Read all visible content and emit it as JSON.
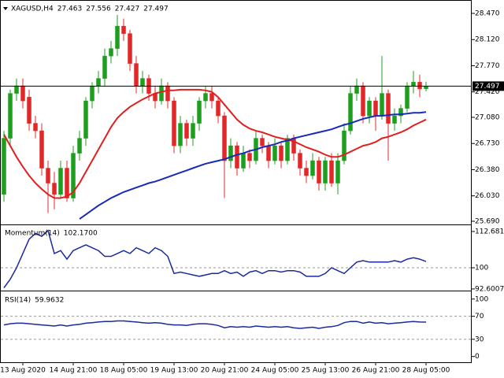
{
  "chart_data": [
    {
      "type": "candlestick",
      "title": "XAGUSD,H4",
      "categories": [
        null,
        null,
        null,
        "13 Aug 2020",
        null,
        null,
        null,
        null,
        null,
        null,
        null,
        "14 Aug 21:00",
        null,
        null,
        null,
        null,
        null,
        null,
        null,
        "18 Aug 05:00",
        null,
        null,
        null,
        null,
        null,
        null,
        null,
        "19 Aug 13:00",
        null,
        null,
        null,
        null,
        null,
        null,
        null,
        "20 Aug 21:00",
        null,
        null,
        null,
        null,
        null,
        null,
        null,
        "24 Aug 05:00",
        null,
        null,
        null,
        null,
        null,
        null,
        null,
        "25 Aug 13:00",
        null,
        null,
        null,
        null,
        null,
        null,
        null,
        "26 Aug 21:00",
        null,
        null,
        null,
        null,
        null,
        null,
        null,
        "28 Aug 05:00"
      ],
      "open": [
        26.05,
        26.8,
        27.4,
        27.5,
        27.35,
        27.0,
        26.9,
        26.4,
        26.2,
        26.05,
        26.4,
        26.0,
        26.6,
        26.8,
        27.3,
        27.5,
        27.6,
        27.9,
        28.0,
        28.3,
        28.2,
        27.8,
        27.5,
        27.6,
        27.4,
        27.3,
        27.5,
        27.3,
        26.7,
        27.0,
        26.8,
        27.0,
        27.3,
        27.4,
        27.3,
        27.1,
        26.5,
        26.7,
        26.4,
        26.6,
        26.5,
        26.8,
        26.7,
        26.5,
        26.7,
        26.5,
        26.8,
        26.6,
        26.4,
        26.3,
        26.5,
        26.2,
        26.5,
        26.2,
        26.5,
        26.9,
        27.4,
        27.5,
        27.1,
        27.3,
        27.1,
        27.4,
        27.0,
        27.1,
        27.2,
        27.5,
        27.55,
        27.463
      ],
      "high": [
        26.9,
        27.45,
        27.6,
        27.6,
        27.45,
        27.1,
        27.0,
        26.5,
        26.35,
        26.5,
        26.5,
        26.7,
        26.9,
        27.35,
        27.55,
        27.7,
        28.0,
        28.1,
        28.45,
        28.4,
        28.25,
        27.9,
        27.7,
        27.65,
        27.5,
        27.6,
        27.55,
        27.35,
        27.1,
        27.05,
        27.1,
        27.35,
        27.5,
        27.5,
        27.35,
        27.15,
        26.8,
        26.75,
        26.7,
        26.65,
        26.9,
        26.85,
        26.75,
        26.8,
        26.75,
        26.85,
        26.85,
        26.65,
        26.5,
        26.6,
        26.55,
        26.55,
        26.6,
        26.6,
        27.0,
        27.5,
        27.6,
        27.55,
        27.35,
        27.35,
        27.9,
        27.45,
        27.2,
        27.25,
        27.55,
        27.7,
        27.65,
        27.556
      ],
      "low": [
        25.95,
        26.7,
        27.3,
        27.2,
        26.9,
        26.8,
        26.3,
        25.8,
        25.85,
        26.0,
        25.95,
        25.95,
        26.5,
        26.7,
        27.2,
        27.4,
        27.5,
        27.8,
        27.9,
        28.1,
        27.7,
        27.4,
        27.4,
        27.3,
        27.2,
        27.25,
        27.2,
        26.6,
        26.6,
        26.7,
        26.7,
        26.9,
        27.2,
        27.2,
        27.0,
        26.0,
        26.4,
        26.3,
        26.35,
        26.4,
        26.45,
        26.6,
        26.4,
        26.45,
        26.4,
        26.45,
        26.5,
        26.3,
        26.2,
        26.25,
        26.1,
        26.1,
        26.15,
        26.05,
        26.45,
        26.85,
        27.3,
        27.0,
        27.0,
        26.9,
        27.05,
        26.5,
        26.9,
        27.0,
        27.15,
        27.4,
        27.35,
        27.427
      ],
      "close": [
        26.8,
        27.4,
        27.5,
        27.3,
        27.0,
        26.9,
        26.4,
        26.2,
        26.05,
        26.4,
        26.0,
        26.6,
        26.8,
        27.3,
        27.5,
        27.6,
        27.9,
        28.0,
        28.3,
        28.2,
        27.8,
        27.5,
        27.6,
        27.4,
        27.3,
        27.5,
        27.3,
        26.7,
        27.0,
        26.8,
        27.0,
        27.3,
        27.4,
        27.3,
        27.1,
        26.5,
        26.7,
        26.4,
        26.6,
        26.5,
        26.8,
        26.7,
        26.5,
        26.7,
        26.5,
        26.8,
        26.6,
        26.4,
        26.3,
        26.5,
        26.2,
        26.5,
        26.2,
        26.5,
        26.9,
        27.4,
        27.5,
        27.1,
        27.3,
        27.1,
        27.4,
        27.0,
        27.1,
        27.2,
        27.5,
        27.55,
        27.46,
        27.497
      ],
      "up_color": "#1e9e1e",
      "down_color": "#e02828",
      "series": [
        {
          "color": "#e02020",
          "values": [
            26.85,
            26.7,
            26.55,
            26.42,
            26.3,
            26.2,
            26.12,
            26.05,
            26.0,
            26.0,
            26.02,
            26.08,
            26.2,
            26.35,
            26.5,
            26.65,
            26.8,
            26.95,
            27.07,
            27.15,
            27.22,
            27.27,
            27.32,
            27.36,
            27.4,
            27.42,
            27.44,
            27.44,
            27.45,
            27.45,
            27.45,
            27.45,
            27.44,
            27.42,
            27.35,
            27.25,
            27.15,
            27.05,
            26.98,
            26.93,
            26.9,
            26.88,
            26.85,
            26.82,
            26.8,
            26.78,
            26.76,
            26.72,
            26.68,
            26.65,
            26.62,
            26.58,
            26.55,
            26.55,
            26.58,
            26.62,
            26.66,
            26.7,
            26.72,
            26.75,
            26.8,
            26.82,
            26.85,
            26.88,
            26.92,
            26.97,
            27.01,
            27.05
          ]
        },
        {
          "color": "#1a2ab8",
          "values": [
            null,
            null,
            null,
            null,
            null,
            null,
            null,
            null,
            null,
            null,
            null,
            null,
            25.72,
            25.78,
            25.84,
            25.9,
            25.95,
            26.0,
            26.04,
            26.08,
            26.11,
            26.14,
            26.17,
            26.2,
            26.22,
            26.25,
            26.28,
            26.31,
            26.34,
            26.37,
            26.4,
            26.43,
            26.46,
            26.48,
            26.5,
            26.52,
            26.55,
            26.58,
            26.6,
            26.63,
            26.65,
            26.68,
            26.7,
            26.72,
            26.75,
            26.77,
            26.8,
            26.82,
            26.84,
            26.86,
            26.88,
            26.9,
            26.92,
            26.95,
            26.98,
            27.0,
            27.03,
            27.06,
            27.08,
            27.1,
            27.1,
            27.11,
            27.12,
            27.12,
            27.13,
            27.14,
            27.14,
            27.15
          ]
        }
      ],
      "ylim": [
        25.658,
        28.607
      ],
      "yticks": [
        {
          "value": 28.47,
          "label": "28.470"
        },
        {
          "value": 28.12,
          "label": "28.120"
        },
        {
          "value": 27.77,
          "label": "27.770"
        },
        {
          "value": 27.42,
          "label": "27.420"
        },
        {
          "value": 27.08,
          "label": "27.080"
        },
        {
          "value": 26.73,
          "label": "26.730"
        },
        {
          "value": 26.38,
          "label": "26.380"
        },
        {
          "value": 26.03,
          "label": "26.030"
        },
        {
          "value": 25.69,
          "label": "25.690"
        }
      ]
    },
    {
      "type": "line",
      "title": "Momentum(14)",
      "last_value_label": "102.1700",
      "series": [
        {
          "color": "#1a2a9a",
          "values": [
            93,
            96,
            100,
            105,
            110,
            112,
            111,
            113,
            105,
            106,
            103,
            106,
            107,
            108,
            107,
            106,
            104,
            104,
            105,
            106,
            105,
            107,
            106,
            105,
            107,
            106,
            104,
            98,
            98.5,
            98,
            97.5,
            97,
            97.5,
            98,
            98,
            99,
            98,
            98.5,
            97,
            98.5,
            99,
            98,
            99,
            99,
            98.5,
            99,
            99,
            98.5,
            97,
            97,
            97,
            98,
            100,
            99,
            98,
            100,
            102,
            102.5,
            102,
            102,
            102,
            102,
            102.5,
            102,
            103,
            103.5,
            103,
            102.17
          ]
        }
      ],
      "ylim": [
        92.3,
        114.6
      ],
      "yticks": [
        112.6816,
        100,
        92.6007
      ],
      "dashed_levels": [
        100
      ]
    },
    {
      "type": "line",
      "title": "RSI(14)",
      "series": [
        {
          "color": "#1a2a9a",
          "values": [
            55,
            57,
            58,
            58,
            57,
            56,
            55,
            54,
            53,
            55,
            53,
            55,
            56,
            58,
            59,
            60,
            61,
            61,
            62,
            62,
            61,
            60,
            59,
            58,
            59,
            58,
            56,
            55,
            55,
            54,
            56,
            57,
            57,
            56,
            54,
            50,
            52,
            51,
            52,
            51,
            53,
            52,
            51,
            52,
            51,
            52,
            50,
            49,
            50,
            51,
            49,
            51,
            52,
            54,
            59,
            61,
            61,
            58,
            60,
            58,
            59,
            57,
            58,
            59,
            60,
            61,
            60,
            59.9632
          ]
        }
      ],
      "ylim": [
        -10,
        112
      ],
      "yticks": [
        100,
        70,
        30,
        0
      ],
      "dashed_levels": [
        70,
        30
      ]
    }
  ]
}
